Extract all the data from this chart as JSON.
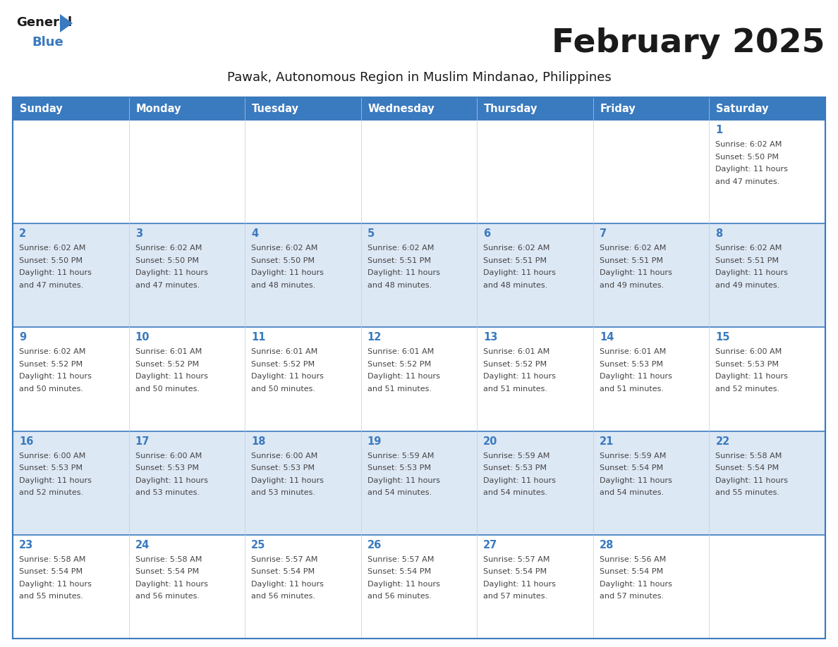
{
  "title": "February 2025",
  "subtitle": "Pawak, Autonomous Region in Muslim Mindanao, Philippines",
  "header_color": "#3a7abf",
  "header_text_color": "#ffffff",
  "day_names": [
    "Sunday",
    "Monday",
    "Tuesday",
    "Wednesday",
    "Thursday",
    "Friday",
    "Saturday"
  ],
  "bg_color": "#ffffff",
  "cell_bg_alt": "#dde8f5",
  "day_number_color": "#3a7abf",
  "text_color": "#444444",
  "line_color": "#3a7abf",
  "logo_color1": "#1a1a1a",
  "logo_color2": "#3a7abf",
  "logo_triangle_color": "#3a7abf",
  "days": [
    {
      "day": 1,
      "col": 6,
      "row": 0,
      "sunrise": "6:02 AM",
      "sunset": "5:50 PM",
      "daylight": "11 hours and 47 minutes."
    },
    {
      "day": 2,
      "col": 0,
      "row": 1,
      "sunrise": "6:02 AM",
      "sunset": "5:50 PM",
      "daylight": "11 hours and 47 minutes."
    },
    {
      "day": 3,
      "col": 1,
      "row": 1,
      "sunrise": "6:02 AM",
      "sunset": "5:50 PM",
      "daylight": "11 hours and 47 minutes."
    },
    {
      "day": 4,
      "col": 2,
      "row": 1,
      "sunrise": "6:02 AM",
      "sunset": "5:50 PM",
      "daylight": "11 hours and 48 minutes."
    },
    {
      "day": 5,
      "col": 3,
      "row": 1,
      "sunrise": "6:02 AM",
      "sunset": "5:51 PM",
      "daylight": "11 hours and 48 minutes."
    },
    {
      "day": 6,
      "col": 4,
      "row": 1,
      "sunrise": "6:02 AM",
      "sunset": "5:51 PM",
      "daylight": "11 hours and 48 minutes."
    },
    {
      "day": 7,
      "col": 5,
      "row": 1,
      "sunrise": "6:02 AM",
      "sunset": "5:51 PM",
      "daylight": "11 hours and 49 minutes."
    },
    {
      "day": 8,
      "col": 6,
      "row": 1,
      "sunrise": "6:02 AM",
      "sunset": "5:51 PM",
      "daylight": "11 hours and 49 minutes."
    },
    {
      "day": 9,
      "col": 0,
      "row": 2,
      "sunrise": "6:02 AM",
      "sunset": "5:52 PM",
      "daylight": "11 hours and 50 minutes."
    },
    {
      "day": 10,
      "col": 1,
      "row": 2,
      "sunrise": "6:01 AM",
      "sunset": "5:52 PM",
      "daylight": "11 hours and 50 minutes."
    },
    {
      "day": 11,
      "col": 2,
      "row": 2,
      "sunrise": "6:01 AM",
      "sunset": "5:52 PM",
      "daylight": "11 hours and 50 minutes."
    },
    {
      "day": 12,
      "col": 3,
      "row": 2,
      "sunrise": "6:01 AM",
      "sunset": "5:52 PM",
      "daylight": "11 hours and 51 minutes."
    },
    {
      "day": 13,
      "col": 4,
      "row": 2,
      "sunrise": "6:01 AM",
      "sunset": "5:52 PM",
      "daylight": "11 hours and 51 minutes."
    },
    {
      "day": 14,
      "col": 5,
      "row": 2,
      "sunrise": "6:01 AM",
      "sunset": "5:53 PM",
      "daylight": "11 hours and 51 minutes."
    },
    {
      "day": 15,
      "col": 6,
      "row": 2,
      "sunrise": "6:00 AM",
      "sunset": "5:53 PM",
      "daylight": "11 hours and 52 minutes."
    },
    {
      "day": 16,
      "col": 0,
      "row": 3,
      "sunrise": "6:00 AM",
      "sunset": "5:53 PM",
      "daylight": "11 hours and 52 minutes."
    },
    {
      "day": 17,
      "col": 1,
      "row": 3,
      "sunrise": "6:00 AM",
      "sunset": "5:53 PM",
      "daylight": "11 hours and 53 minutes."
    },
    {
      "day": 18,
      "col": 2,
      "row": 3,
      "sunrise": "6:00 AM",
      "sunset": "5:53 PM",
      "daylight": "11 hours and 53 minutes."
    },
    {
      "day": 19,
      "col": 3,
      "row": 3,
      "sunrise": "5:59 AM",
      "sunset": "5:53 PM",
      "daylight": "11 hours and 54 minutes."
    },
    {
      "day": 20,
      "col": 4,
      "row": 3,
      "sunrise": "5:59 AM",
      "sunset": "5:53 PM",
      "daylight": "11 hours and 54 minutes."
    },
    {
      "day": 21,
      "col": 5,
      "row": 3,
      "sunrise": "5:59 AM",
      "sunset": "5:54 PM",
      "daylight": "11 hours and 54 minutes."
    },
    {
      "day": 22,
      "col": 6,
      "row": 3,
      "sunrise": "5:58 AM",
      "sunset": "5:54 PM",
      "daylight": "11 hours and 55 minutes."
    },
    {
      "day": 23,
      "col": 0,
      "row": 4,
      "sunrise": "5:58 AM",
      "sunset": "5:54 PM",
      "daylight": "11 hours and 55 minutes."
    },
    {
      "day": 24,
      "col": 1,
      "row": 4,
      "sunrise": "5:58 AM",
      "sunset": "5:54 PM",
      "daylight": "11 hours and 56 minutes."
    },
    {
      "day": 25,
      "col": 2,
      "row": 4,
      "sunrise": "5:57 AM",
      "sunset": "5:54 PM",
      "daylight": "11 hours and 56 minutes."
    },
    {
      "day": 26,
      "col": 3,
      "row": 4,
      "sunrise": "5:57 AM",
      "sunset": "5:54 PM",
      "daylight": "11 hours and 56 minutes."
    },
    {
      "day": 27,
      "col": 4,
      "row": 4,
      "sunrise": "5:57 AM",
      "sunset": "5:54 PM",
      "daylight": "11 hours and 57 minutes."
    },
    {
      "day": 28,
      "col": 5,
      "row": 4,
      "sunrise": "5:56 AM",
      "sunset": "5:54 PM",
      "daylight": "11 hours and 57 minutes."
    }
  ]
}
